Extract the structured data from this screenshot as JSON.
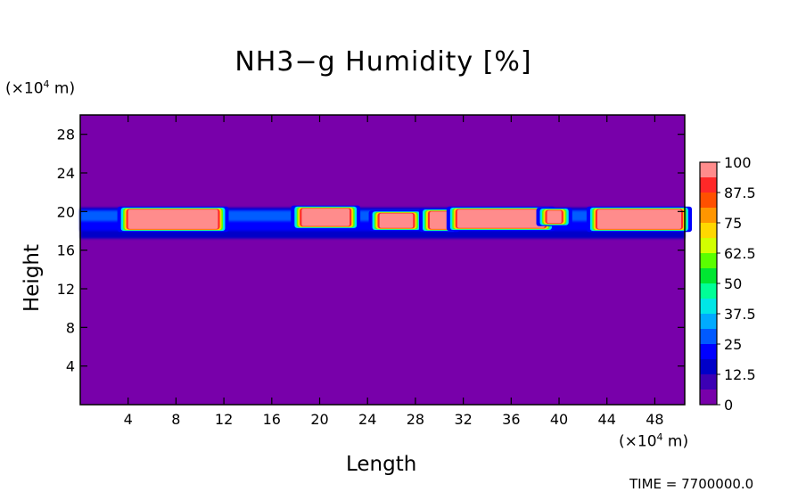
{
  "chart_data": {
    "type": "heatmap",
    "title": "NH3−g Humidity [%]",
    "xlabel": "Length",
    "ylabel": "Height",
    "x_unit": "(×10",
    "x_unit_exp": "4",
    "x_unit_tail": " m)",
    "y_unit": "(×10",
    "y_unit_exp": "4",
    "y_unit_tail": " m)",
    "xlim": [
      0,
      50.5
    ],
    "ylim": [
      0,
      30
    ],
    "x_ticks": [
      4,
      8,
      12,
      16,
      20,
      24,
      28,
      32,
      36,
      40,
      44,
      48
    ],
    "y_ticks": [
      4,
      8,
      12,
      16,
      20,
      24,
      28
    ],
    "background_value": 0,
    "colorbar": {
      "labels": [
        "100",
        "87.5",
        "75",
        "62.5",
        "50",
        "37.5",
        "25",
        "12.5",
        "0"
      ],
      "colors": [
        "#ff8c8c",
        "#ff2828",
        "#ff5000",
        "#ff9600",
        "#ffd700",
        "#d2ff00",
        "#5aff00",
        "#00e632",
        "#00ff96",
        "#00e6e6",
        "#00aaff",
        "#005aff",
        "#0000ff",
        "#0000c8",
        "#3c00b4",
        "#7800aa"
      ]
    },
    "cloud_cells": [
      {
        "x": [
          4,
          11.5
        ],
        "y": [
          18.2,
          20.2
        ],
        "value": 100
      },
      {
        "x": [
          18.5,
          22.5
        ],
        "y": [
          18.5,
          20.3
        ],
        "value": 100
      },
      {
        "x": [
          25,
          27.8
        ],
        "y": [
          18.3,
          19.8
        ],
        "value": 100
      },
      {
        "x": [
          29.2,
          30.8
        ],
        "y": [
          18.2,
          20.0
        ],
        "value": 100
      },
      {
        "x": [
          31.5,
          38.8
        ],
        "y": [
          18.3,
          20.2
        ],
        "value": 100
      },
      {
        "x": [
          39,
          40.2
        ],
        "y": [
          18.8,
          20.1
        ],
        "value": 100
      },
      {
        "x": [
          43.2,
          50.2
        ],
        "y": [
          18.2,
          20.2
        ],
        "value": 100
      }
    ],
    "footer": "TIME = 7700000.0"
  }
}
